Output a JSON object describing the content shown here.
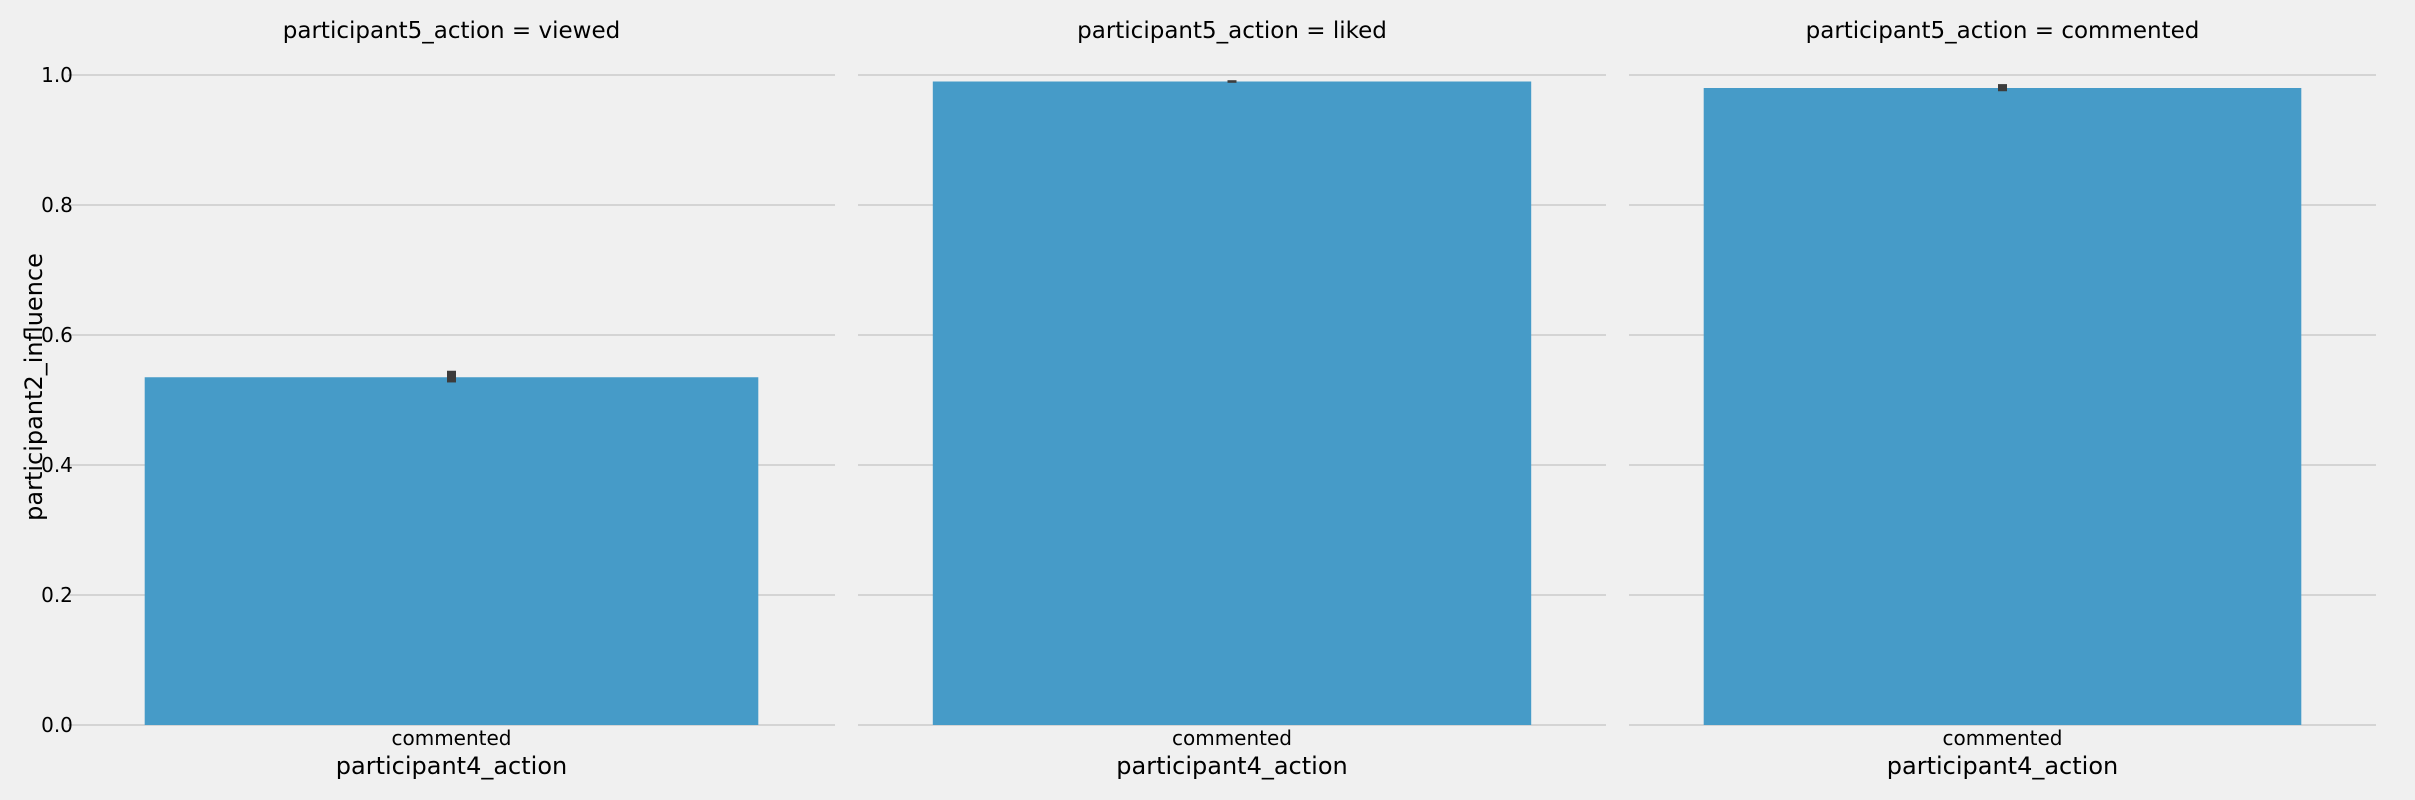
{
  "chart_data": [
    {
      "type": "bar",
      "title": "participant5_action = viewed",
      "categories": [
        "commented"
      ],
      "values": [
        0.535
      ],
      "error": [
        [
          0.527,
          0.545
        ]
      ],
      "xlabel": "participant4_action",
      "ylabel": "participant2_influence",
      "ylim": [
        0,
        1.0
      ],
      "yticks": [
        "0.0",
        "0.2",
        "0.4",
        "0.6",
        "0.8",
        "1.0"
      ],
      "grid": true
    },
    {
      "type": "bar",
      "title": "participant5_action = liked",
      "categories": [
        "commented"
      ],
      "values": [
        0.99
      ],
      "error": [
        [
          0.988,
          0.992
        ]
      ],
      "xlabel": "participant4_action",
      "ylabel": "",
      "ylim": [
        0,
        1.0
      ],
      "yticks": [],
      "grid": true
    },
    {
      "type": "bar",
      "title": "participant5_action = commented",
      "categories": [
        "commented"
      ],
      "values": [
        0.98
      ],
      "error": [
        [
          0.975,
          0.986
        ]
      ],
      "xlabel": "participant4_action",
      "ylabel": "",
      "ylim": [
        0,
        1.0
      ],
      "yticks": [],
      "grid": true
    }
  ],
  "colors": {
    "bar": "#469bc8",
    "error": "#3c3c3c",
    "grid": "#cbcbcb",
    "background": "#f0f0f0"
  }
}
